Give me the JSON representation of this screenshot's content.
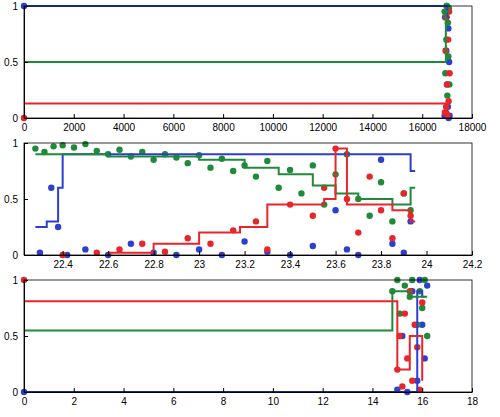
{
  "chart_data": [
    {
      "type": "scatter",
      "xlim": [
        0,
        18000
      ],
      "xticks": [
        0,
        2000,
        4000,
        6000,
        8000,
        10000,
        12000,
        14000,
        16000,
        18000
      ],
      "ylim": [
        0,
        1
      ],
      "yticks": [
        0,
        0.5,
        1
      ],
      "series": [
        {
          "type": "scatter",
          "marker": "circle",
          "color": "#2d3ed0",
          "x": [
            0,
            16900,
            16920,
            16950,
            16970,
            16980,
            17000,
            17010,
            17030,
            17050,
            17060,
            17080,
            17100
          ],
          "values": [
            1,
            0.02,
            0.9,
            0.05,
            0.6,
            1,
            0.3,
            0.95,
            0.1,
            0.8,
            0.0,
            0.5,
            0.02
          ]
        },
        {
          "type": "scatter",
          "marker": "circle",
          "color": "#1e8a3a",
          "x": [
            16900,
            16930,
            16950,
            16970,
            16990,
            17010,
            17030,
            17050,
            17070,
            17090
          ],
          "values": [
            0.95,
            0.4,
            0.9,
            0.7,
            1,
            0.2,
            0.85,
            0.55,
            0.98,
            0.3
          ]
        },
        {
          "type": "scatter",
          "marker": "circle",
          "color": "#e8262a",
          "x": [
            0,
            16910,
            16940,
            16960,
            16980,
            17000,
            17020,
            17040,
            17060,
            17080,
            17100
          ],
          "values": [
            0,
            0.05,
            0.6,
            0.1,
            0.9,
            0.3,
            0.02,
            0.7,
            0.15,
            0.95,
            0.4
          ]
        },
        {
          "type": "line",
          "line_style": "step",
          "color": "#2d3ed0",
          "x": [
            0,
            17000,
            17100
          ],
          "values": [
            1,
            0.9,
            0.9
          ]
        },
        {
          "type": "line",
          "line_style": "step",
          "color": "#1e8a3a",
          "x": [
            0,
            16950,
            17100
          ],
          "values": [
            0.5,
            0.95,
            0.95
          ]
        },
        {
          "type": "line",
          "line_style": "step",
          "color": "#e8262a",
          "x": [
            0,
            16950,
            17100
          ],
          "values": [
            0.13,
            0.05,
            0.05
          ]
        }
      ]
    },
    {
      "type": "scatter",
      "xlim": [
        22.23,
        24.2
      ],
      "xticks": [
        22.4,
        22.6,
        22.8,
        23,
        23.2,
        23.4,
        23.6,
        23.8,
        24,
        24.2
      ],
      "ylim": [
        0,
        1
      ],
      "yticks": [
        0,
        0.5,
        1
      ],
      "series": [
        {
          "type": "scatter",
          "marker": "circle",
          "color": "#1e8a3a",
          "x": [
            22.28,
            22.32,
            22.36,
            22.4,
            22.45,
            22.5,
            22.55,
            22.6,
            22.65,
            22.7,
            22.75,
            22.8,
            22.85,
            22.9,
            22.95,
            23.0,
            23.05,
            23.1,
            23.15,
            23.2,
            23.25,
            23.3,
            23.35,
            23.4,
            23.45,
            23.5,
            23.55,
            23.6,
            23.65,
            23.7,
            23.75,
            23.8,
            23.85,
            23.9,
            23.93
          ],
          "values": [
            0.95,
            0.92,
            0.97,
            0.98,
            0.96,
            0.99,
            0.93,
            0.9,
            0.94,
            0.88,
            0.92,
            0.85,
            0.9,
            0.87,
            0.82,
            0.89,
            0.78,
            0.86,
            0.75,
            0.8,
            0.7,
            0.84,
            0.6,
            0.76,
            0.55,
            0.8,
            0.45,
            0.72,
            0.9,
            0.5,
            0.35,
            0.65,
            0.3,
            0.55,
            0.4
          ]
        },
        {
          "type": "scatter",
          "marker": "circle",
          "color": "#2d3ed0",
          "x": [
            22.3,
            22.35,
            22.38,
            22.42,
            22.5,
            22.6,
            22.7,
            22.8,
            22.9,
            23.0,
            23.1,
            23.2,
            23.3,
            23.4,
            23.5,
            23.6,
            23.65,
            23.7,
            23.8,
            23.85,
            23.9,
            23.93
          ],
          "values": [
            0.02,
            0.6,
            0.25,
            0.0,
            0.05,
            0.0,
            0.1,
            0.02,
            0.0,
            0.05,
            0.0,
            0.12,
            0.03,
            0.0,
            0.08,
            0.4,
            0.05,
            0.0,
            0.85,
            0.1,
            0.02,
            0.3
          ]
        },
        {
          "type": "scatter",
          "marker": "circle",
          "color": "#e8262a",
          "x": [
            22.4,
            22.55,
            22.65,
            22.75,
            22.85,
            22.95,
            23.05,
            23.15,
            23.25,
            23.3,
            23.4,
            23.5,
            23.55,
            23.6,
            23.65,
            23.7,
            23.75,
            23.8,
            23.85,
            23.9,
            23.93
          ],
          "values": [
            0.0,
            0.02,
            0.05,
            0.1,
            0.03,
            0.15,
            0.1,
            0.22,
            0.3,
            0.05,
            0.45,
            0.35,
            0.6,
            0.95,
            0.5,
            0.2,
            0.7,
            0.4,
            0.15,
            0.55,
            0.35
          ]
        },
        {
          "type": "line",
          "line_style": "step",
          "color": "#2d3ed0",
          "x": [
            22.28,
            22.33,
            22.38,
            22.4,
            23.93,
            23.95
          ],
          "values": [
            0.25,
            0.3,
            0.6,
            0.9,
            0.75,
            0.75
          ]
        },
        {
          "type": "line",
          "line_style": "step",
          "color": "#1e8a3a",
          "x": [
            22.28,
            22.6,
            23.0,
            23.2,
            23.35,
            23.5,
            23.6,
            23.7,
            23.85,
            23.93,
            23.95
          ],
          "values": [
            0.9,
            0.88,
            0.85,
            0.78,
            0.72,
            0.62,
            0.55,
            0.5,
            0.45,
            0.6,
            0.6
          ]
        },
        {
          "type": "line",
          "line_style": "step",
          "color": "#e8262a",
          "x": [
            22.6,
            22.8,
            23.0,
            23.18,
            23.3,
            23.55,
            23.6,
            23.65,
            23.85,
            23.93,
            23.95
          ],
          "values": [
            0.02,
            0.1,
            0.2,
            0.25,
            0.45,
            0.5,
            0.95,
            0.45,
            0.4,
            0.3,
            0.3
          ]
        }
      ]
    },
    {
      "type": "scatter",
      "xlim": [
        0,
        18
      ],
      "xticks": [
        0,
        2,
        4,
        6,
        8,
        10,
        12,
        14,
        16,
        18
      ],
      "ylim": [
        0,
        1
      ],
      "yticks": [
        0,
        0.5,
        1
      ],
      "series": [
        {
          "type": "scatter",
          "marker": "circle",
          "color": "#2d3ed0",
          "x": [
            0,
            15.0,
            15.2,
            15.4,
            15.6,
            15.8,
            15.9,
            16.0,
            16.1,
            16.2
          ],
          "values": [
            0,
            0.02,
            0.5,
            0.0,
            0.9,
            0.1,
            1,
            0.6,
            0.3,
            0.95
          ]
        },
        {
          "type": "scatter",
          "marker": "circle",
          "color": "#1e8a3a",
          "x": [
            14.8,
            15.0,
            15.1,
            15.3,
            15.5,
            15.6,
            15.8,
            15.9,
            16.0,
            16.1,
            16.2
          ],
          "values": [
            0.9,
            1,
            0.7,
            0.95,
            0.85,
            1,
            0.6,
            0.9,
            0.75,
            1,
            0.5
          ]
        },
        {
          "type": "scatter",
          "marker": "circle",
          "color": "#e8262a",
          "x": [
            0,
            15.0,
            15.1,
            15.2,
            15.3,
            15.4,
            15.5,
            15.6,
            15.7,
            15.8,
            15.9,
            16.0
          ],
          "values": [
            1,
            0.2,
            0.5,
            0.05,
            0.7,
            0.3,
            0.9,
            0.1,
            0.6,
            0.4,
            0.02,
            0.8
          ]
        },
        {
          "type": "line",
          "line_style": "step",
          "color": "#2d3ed0",
          "x": [
            0,
            15.8,
            16.0,
            16.1
          ],
          "values": [
            0,
            0.9,
            0.85,
            0.85
          ]
        },
        {
          "type": "line",
          "line_style": "step",
          "color": "#1e8a3a",
          "x": [
            0,
            14.8,
            15.5,
            16.2
          ],
          "values": [
            0.55,
            0.9,
            0.85,
            0.85
          ]
        },
        {
          "type": "line",
          "line_style": "step",
          "color": "#e8262a",
          "x": [
            0,
            15.0,
            15.5,
            16.0
          ],
          "values": [
            0.81,
            0.2,
            0.5,
            0.1
          ]
        }
      ]
    }
  ]
}
